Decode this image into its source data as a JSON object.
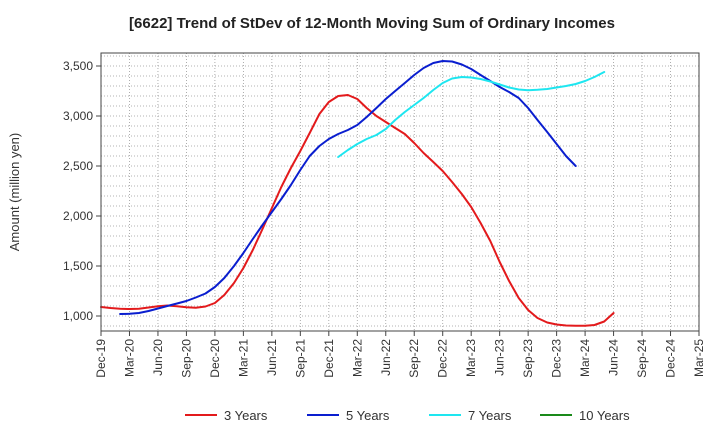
{
  "chart_data": {
    "type": "line",
    "title": "[6622]  Trend of StDev of 12-Month Moving Sum of Ordinary Incomes",
    "xlabel": "",
    "ylabel": "Amount (million yen)",
    "ylim": [
      850,
      3630
    ],
    "yticks": [
      1000,
      1500,
      2000,
      2500,
      3000,
      3500
    ],
    "ytick_labels": [
      "1,000",
      "1,500",
      "2,000",
      "2,500",
      "3,000",
      "3,500"
    ],
    "x_index_range": [
      0,
      21
    ],
    "categories": [
      "Dec-19",
      "Mar-20",
      "Jun-20",
      "Sep-20",
      "Dec-20",
      "Mar-21",
      "Jun-21",
      "Sep-21",
      "Dec-21",
      "Mar-22",
      "Jun-22",
      "Sep-22",
      "Dec-22",
      "Mar-23",
      "Jun-23",
      "Sep-23",
      "Dec-23",
      "Mar-24",
      "Jun-24",
      "Sep-24",
      "Dec-24",
      "Mar-25"
    ],
    "grid": true,
    "legend_position": "bottom",
    "series": [
      {
        "name": "3 Years",
        "color": "#e31a1c",
        "points": [
          [
            0,
            1090
          ],
          [
            0.33,
            1080
          ],
          [
            0.67,
            1072
          ],
          [
            1,
            1070
          ],
          [
            1.33,
            1073
          ],
          [
            1.67,
            1085
          ],
          [
            2,
            1098
          ],
          [
            2.33,
            1105
          ],
          [
            2.67,
            1098
          ],
          [
            3,
            1088
          ],
          [
            3.33,
            1083
          ],
          [
            3.67,
            1095
          ],
          [
            4,
            1130
          ],
          [
            4.33,
            1210
          ],
          [
            4.67,
            1330
          ],
          [
            5,
            1480
          ],
          [
            5.33,
            1660
          ],
          [
            5.67,
            1870
          ],
          [
            6,
            2080
          ],
          [
            6.33,
            2290
          ],
          [
            6.67,
            2480
          ],
          [
            7,
            2650
          ],
          [
            7.33,
            2830
          ],
          [
            7.67,
            3020
          ],
          [
            8,
            3140
          ],
          [
            8.33,
            3200
          ],
          [
            8.67,
            3210
          ],
          [
            9,
            3170
          ],
          [
            9.33,
            3080
          ],
          [
            9.67,
            3000
          ],
          [
            10,
            2940
          ],
          [
            10.33,
            2880
          ],
          [
            10.67,
            2820
          ],
          [
            11,
            2730
          ],
          [
            11.33,
            2630
          ],
          [
            11.67,
            2540
          ],
          [
            12,
            2450
          ],
          [
            12.33,
            2340
          ],
          [
            12.67,
            2220
          ],
          [
            13,
            2090
          ],
          [
            13.33,
            1930
          ],
          [
            13.67,
            1750
          ],
          [
            14,
            1540
          ],
          [
            14.33,
            1350
          ],
          [
            14.67,
            1180
          ],
          [
            15,
            1060
          ],
          [
            15.33,
            980
          ],
          [
            15.67,
            935
          ],
          [
            16,
            915
          ],
          [
            16.33,
            905
          ],
          [
            16.67,
            902
          ],
          [
            17,
            902
          ],
          [
            17.33,
            910
          ],
          [
            17.67,
            945
          ],
          [
            18,
            1030
          ]
        ]
      },
      {
        "name": "5 Years",
        "color": "#0a1ecf",
        "points": [
          [
            0.67,
            1020
          ],
          [
            1,
            1022
          ],
          [
            1.33,
            1030
          ],
          [
            1.67,
            1050
          ],
          [
            2,
            1075
          ],
          [
            2.33,
            1100
          ],
          [
            2.67,
            1125
          ],
          [
            3,
            1150
          ],
          [
            3.33,
            1185
          ],
          [
            3.67,
            1225
          ],
          [
            4,
            1290
          ],
          [
            4.33,
            1380
          ],
          [
            4.67,
            1500
          ],
          [
            5,
            1630
          ],
          [
            5.33,
            1770
          ],
          [
            5.67,
            1910
          ],
          [
            6,
            2040
          ],
          [
            6.33,
            2170
          ],
          [
            6.67,
            2310
          ],
          [
            7,
            2460
          ],
          [
            7.33,
            2600
          ],
          [
            7.67,
            2700
          ],
          [
            8,
            2770
          ],
          [
            8.33,
            2820
          ],
          [
            8.67,
            2860
          ],
          [
            9,
            2910
          ],
          [
            9.33,
            2990
          ],
          [
            9.67,
            3080
          ],
          [
            10,
            3170
          ],
          [
            10.33,
            3250
          ],
          [
            10.67,
            3330
          ],
          [
            11,
            3410
          ],
          [
            11.33,
            3480
          ],
          [
            11.67,
            3530
          ],
          [
            12,
            3550
          ],
          [
            12.33,
            3545
          ],
          [
            12.67,
            3515
          ],
          [
            13,
            3470
          ],
          [
            13.33,
            3410
          ],
          [
            13.67,
            3350
          ],
          [
            14,
            3290
          ],
          [
            14.33,
            3240
          ],
          [
            14.67,
            3180
          ],
          [
            15,
            3080
          ],
          [
            15.33,
            2960
          ],
          [
            15.67,
            2840
          ],
          [
            16,
            2720
          ],
          [
            16.33,
            2600
          ],
          [
            16.67,
            2500
          ]
        ]
      },
      {
        "name": "7 Years",
        "color": "#1ee6f0",
        "points": [
          [
            8.33,
            2590
          ],
          [
            8.67,
            2660
          ],
          [
            9,
            2720
          ],
          [
            9.33,
            2770
          ],
          [
            9.67,
            2810
          ],
          [
            10,
            2870
          ],
          [
            10.33,
            2960
          ],
          [
            10.67,
            3040
          ],
          [
            11,
            3110
          ],
          [
            11.33,
            3180
          ],
          [
            11.67,
            3260
          ],
          [
            12,
            3330
          ],
          [
            12.33,
            3375
          ],
          [
            12.67,
            3390
          ],
          [
            13,
            3385
          ],
          [
            13.33,
            3370
          ],
          [
            13.67,
            3345
          ],
          [
            14,
            3315
          ],
          [
            14.33,
            3285
          ],
          [
            14.67,
            3265
          ],
          [
            15,
            3258
          ],
          [
            15.33,
            3262
          ],
          [
            15.67,
            3270
          ],
          [
            16,
            3285
          ],
          [
            16.33,
            3300
          ],
          [
            16.67,
            3320
          ],
          [
            17,
            3350
          ],
          [
            17.33,
            3390
          ],
          [
            17.67,
            3440
          ]
        ]
      },
      {
        "name": "10 Years",
        "color": "#1a8a1a",
        "points": []
      }
    ]
  }
}
